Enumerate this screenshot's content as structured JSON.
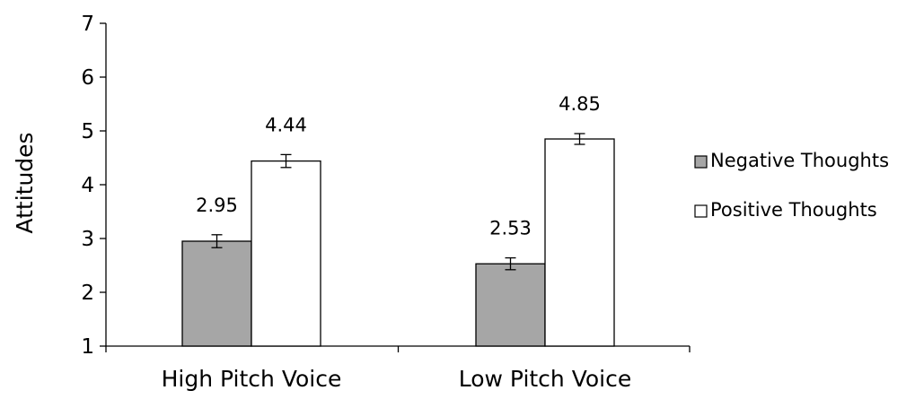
{
  "chart_data": {
    "type": "bar",
    "title": "",
    "xlabel": "",
    "ylabel": "Attitudes",
    "ylim": [
      1,
      7
    ],
    "yticks": [
      1,
      2,
      3,
      4,
      5,
      6,
      7
    ],
    "categories": [
      "High Pitch Voice",
      "Low Pitch Voice"
    ],
    "series": [
      {
        "name": "Negative Thoughts",
        "values": [
          2.95,
          2.53
        ],
        "error": [
          0.12,
          0.11
        ],
        "color": "#a6a6a6"
      },
      {
        "name": "Positive Thoughts",
        "values": [
          4.44,
          4.85
        ],
        "error": [
          0.12,
          0.1
        ],
        "color": "#ffffff"
      }
    ],
    "data_labels": [
      [
        "2.95",
        "2.53"
      ],
      [
        "4.44",
        "4.85"
      ]
    ],
    "error_bars": true,
    "grid": false,
    "legend_position": "right"
  }
}
